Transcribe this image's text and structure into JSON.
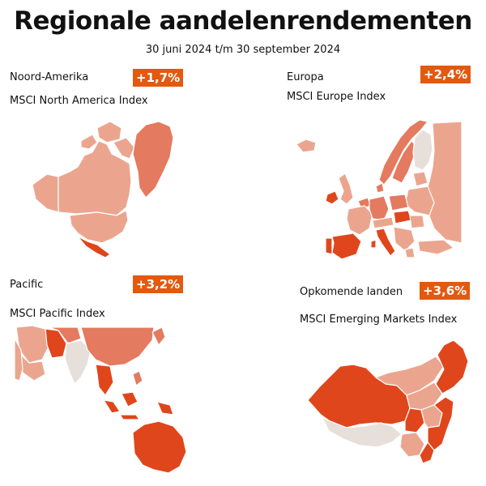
{
  "title": "Regionale aandelenrendementen",
  "subtitle": "30 juni 2024 t/m 30 september 2024",
  "colors": {
    "dark": "#e0461b",
    "medium": "#e47a5f",
    "light": "#eba58e",
    "neutral": "#e7dfda",
    "badge": "#e2590f"
  },
  "regions": [
    {
      "name": "Noord-Amerika",
      "return": "+1,7%",
      "index": "MSCI North America Index"
    },
    {
      "name": "Europa",
      "return": "+2,4%",
      "index": "MSCI Europe Index"
    },
    {
      "name": "Pacific",
      "return": "+3,2%",
      "index": "MSCI Pacific Index"
    },
    {
      "name": "Opkomende landen",
      "return": "+3,6%",
      "index": "MSCI Emerging Markets Index"
    }
  ]
}
